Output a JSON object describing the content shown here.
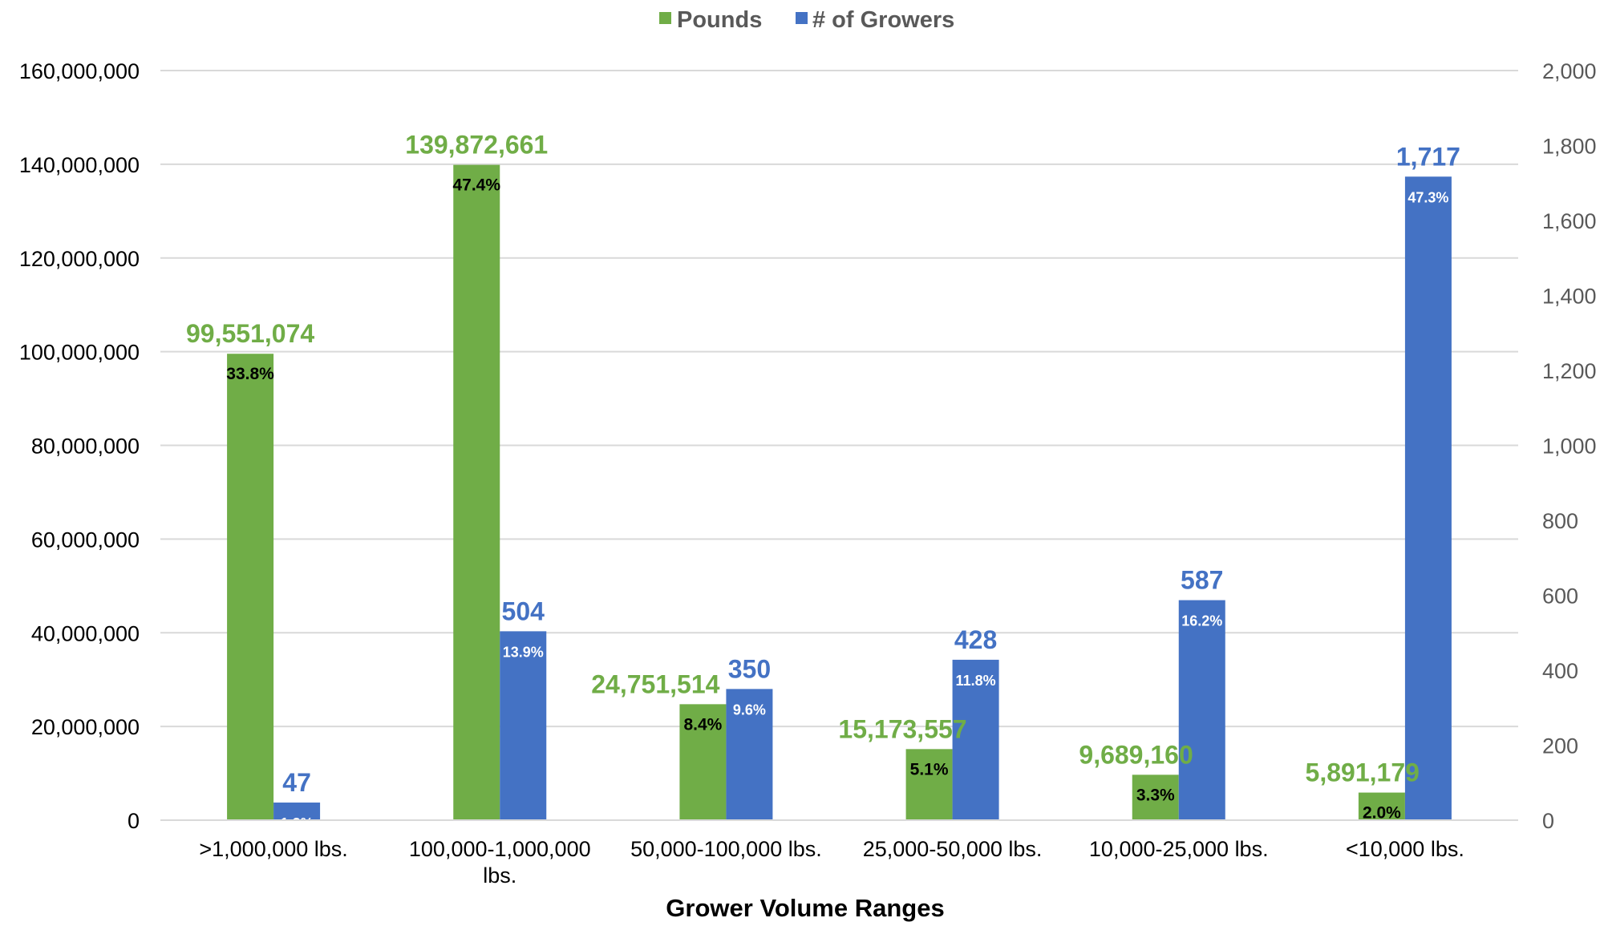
{
  "chart_data": {
    "type": "bar",
    "title": "",
    "xlabel": "Grower Volume Ranges",
    "ylabel": "",
    "y2label": "",
    "categories": [
      ">1,000,000 lbs.",
      "100,000-1,000,000 lbs.",
      "50,000-100,000 lbs.",
      "25,000-50,000 lbs.",
      "10,000-25,000 lbs.",
      "<10,000 lbs."
    ],
    "series": [
      {
        "name": "Pounds",
        "axis": "left",
        "color": "#70ad47",
        "values": [
          99551074,
          139872661,
          24751514,
          15173557,
          9689160,
          5891179
        ],
        "value_labels": [
          "99,551,074",
          "139,872,661",
          "24,751,514",
          "15,173,557",
          "9,689,160",
          "5,891,179"
        ],
        "percent_labels": [
          "33.8%",
          "47.4%",
          "8.4%",
          "5.1%",
          "3.3%",
          "2.0%"
        ],
        "label_color": "#70ad47",
        "percent_color": "#000000"
      },
      {
        "name": "# of Growers",
        "axis": "right",
        "color": "#4472c4",
        "values": [
          47,
          504,
          350,
          428,
          587,
          1717
        ],
        "value_labels": [
          "47",
          "504",
          "350",
          "428",
          "587",
          "1,717"
        ],
        "percent_labels": [
          "1.3%",
          "13.9%",
          "9.6%",
          "11.8%",
          "16.2%",
          "47.3%"
        ],
        "label_color": "#4472c4",
        "percent_color": "#ffffff"
      }
    ],
    "ylim": [
      0,
      160000000
    ],
    "y2lim": [
      0,
      2000
    ],
    "y_ticks": [
      "0",
      "20,000,000",
      "40,000,000",
      "60,000,000",
      "80,000,000",
      "100,000,000",
      "120,000,000",
      "140,000,000",
      "160,000,000"
    ],
    "y2_ticks": [
      "0",
      "200",
      "400",
      "600",
      "800",
      "1,000",
      "1,200",
      "1,400",
      "1,600",
      "1,800",
      "2,000"
    ],
    "grid": true,
    "legend": "top-center",
    "colors": {
      "gridline": "#d9d9d9",
      "axis_text": "#000000",
      "axis2_text": "#595959",
      "legend_text": "#595959"
    }
  }
}
